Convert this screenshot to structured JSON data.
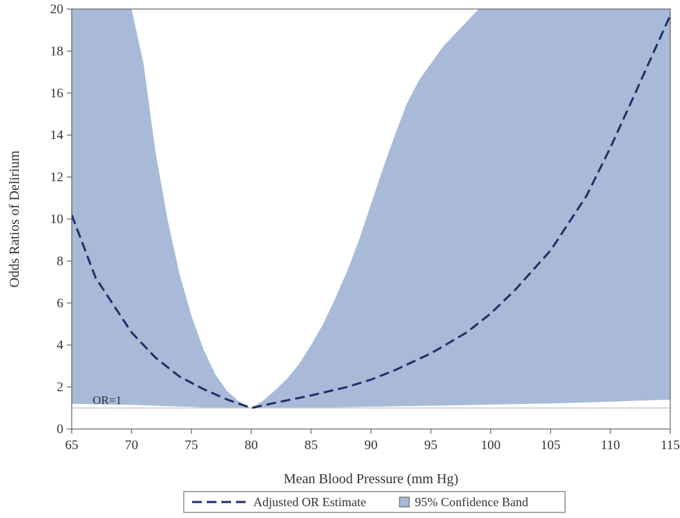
{
  "chart_data": {
    "type": "area",
    "title": "",
    "xlabel": "Mean Blood Pressure (mm Hg)",
    "ylabel": "Odds Ratios of Delirium",
    "xlim": [
      65,
      115
    ],
    "ylim": [
      0,
      20
    ],
    "x_ticks": [
      65,
      70,
      75,
      80,
      85,
      90,
      95,
      100,
      105,
      110,
      115
    ],
    "y_ticks": [
      0,
      2,
      4,
      6,
      8,
      10,
      12,
      14,
      16,
      18,
      20
    ],
    "grid": false,
    "legend_position": "bottom",
    "reference_line": {
      "y": 1,
      "label": "OR=1",
      "color": "#cccccc"
    },
    "series": [
      {
        "name": "Adjusted OR Estimate",
        "style": "dashed-line",
        "color": "#1f2f6b",
        "x": [
          65,
          67,
          70,
          72,
          74,
          76,
          78,
          80,
          82,
          85,
          88,
          90,
          92,
          95,
          98,
          100,
          102,
          105,
          108,
          110,
          112,
          115
        ],
        "y": [
          10.2,
          7.2,
          4.6,
          3.4,
          2.5,
          1.9,
          1.4,
          1.0,
          1.25,
          1.6,
          2.0,
          2.35,
          2.8,
          3.6,
          4.6,
          5.5,
          6.6,
          8.5,
          11.1,
          13.4,
          15.9,
          19.7
        ]
      },
      {
        "name": "95% Confidence Band",
        "style": "band",
        "color": "#a8bad7",
        "x": [
          65,
          67,
          69,
          70,
          71,
          72,
          73,
          74,
          75,
          76,
          77,
          78,
          79,
          80,
          81,
          82,
          83,
          84,
          85,
          86,
          87,
          88,
          89,
          90,
          91,
          92,
          93,
          94,
          95,
          96,
          97,
          98,
          99,
          100,
          105,
          110,
          115
        ],
        "lower": [
          1.2,
          1.18,
          1.16,
          1.15,
          1.13,
          1.11,
          1.09,
          1.07,
          1.05,
          1.03,
          1.02,
          1.01,
          1.0,
          1.0,
          1.0,
          1.0,
          1.0,
          1.0,
          1.01,
          1.02,
          1.03,
          1.04,
          1.05,
          1.06,
          1.07,
          1.08,
          1.09,
          1.1,
          1.11,
          1.12,
          1.13,
          1.14,
          1.15,
          1.16,
          1.22,
          1.3,
          1.4
        ],
        "upper": [
          20,
          20,
          20,
          20,
          17.4,
          13.2,
          10.0,
          7.4,
          5.4,
          3.8,
          2.6,
          1.8,
          1.3,
          1.0,
          1.35,
          1.85,
          2.4,
          3.1,
          4.0,
          5.0,
          6.2,
          7.5,
          9.0,
          10.7,
          12.4,
          14.0,
          15.5,
          16.6,
          17.4,
          18.2,
          18.8,
          19.4,
          20,
          20,
          20,
          20,
          20
        ]
      }
    ]
  }
}
